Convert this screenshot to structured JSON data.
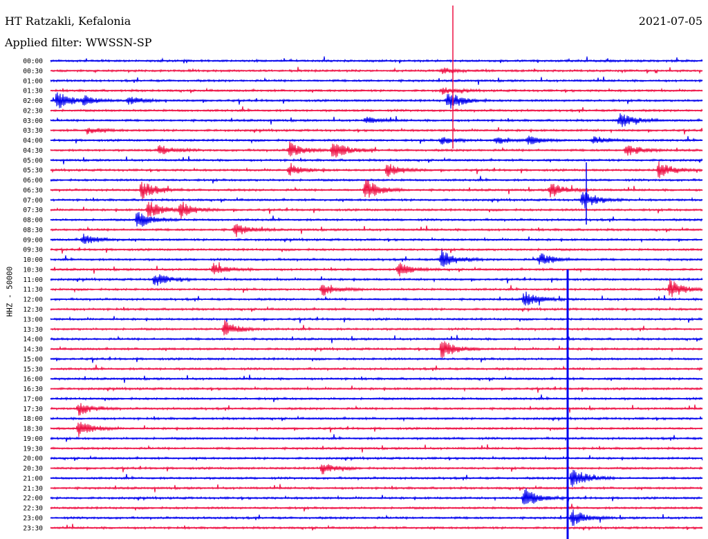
{
  "header": {
    "station": "HT Ratzakli, Kefalonia",
    "date": "2021-07-05",
    "filter_label": "Applied filter:",
    "filter": "WWSSN-SP",
    "channel": "HHZ - 50000"
  },
  "colors": {
    "trace_a": "#0000ee",
    "trace_b": "#ee1144",
    "background": "#ffffff",
    "text": "#000000"
  },
  "chart_data": {
    "type": "line",
    "title": "HT Ratzakli, Kefalonia",
    "subtitle": "Applied filter: WWSSN-SP",
    "ylabel": "HHZ - 50000",
    "rows": [
      "00:00",
      "00:30",
      "01:00",
      "01:30",
      "02:00",
      "02:30",
      "03:00",
      "03:30",
      "04:00",
      "04:30",
      "05:00",
      "05:30",
      "06:00",
      "06:30",
      "07:00",
      "07:30",
      "08:00",
      "08:30",
      "09:00",
      "09:30",
      "10:00",
      "10:30",
      "11:00",
      "11:30",
      "12:00",
      "12:30",
      "13:00",
      "13:30",
      "14:00",
      "14:30",
      "15:00",
      "15:30",
      "16:00",
      "16:30",
      "17:00",
      "17:30",
      "18:00",
      "18:30",
      "19:00",
      "19:30",
      "20:00",
      "20:30",
      "21:00",
      "21:30",
      "22:00",
      "22:30",
      "23:00",
      "23:30"
    ],
    "row_colors": [
      "trace_a",
      "trace_b"
    ],
    "events": [
      {
        "row": "00:30",
        "minute": 18.0,
        "amp": 4
      },
      {
        "row": "01:30",
        "minute": 18.0,
        "amp": 5
      },
      {
        "row": "02:00",
        "minute": 0.3,
        "amp": 14
      },
      {
        "row": "02:00",
        "minute": 1.5,
        "amp": 6
      },
      {
        "row": "02:00",
        "minute": 3.6,
        "amp": 6
      },
      {
        "row": "02:00",
        "minute": 18.3,
        "amp": 14
      },
      {
        "row": "03:00",
        "minute": 14.5,
        "amp": 5
      },
      {
        "row": "03:00",
        "minute": 26.2,
        "amp": 12
      },
      {
        "row": "03:30",
        "minute": 1.7,
        "amp": 5
      },
      {
        "row": "04:00",
        "minute": 18.0,
        "amp": 6
      },
      {
        "row": "04:00",
        "minute": 20.5,
        "amp": 6
      },
      {
        "row": "04:00",
        "minute": 22.0,
        "amp": 6
      },
      {
        "row": "04:00",
        "minute": 25.0,
        "amp": 6
      },
      {
        "row": "04:30",
        "minute": 5.0,
        "amp": 8
      },
      {
        "row": "04:30",
        "minute": 11.0,
        "amp": 12
      },
      {
        "row": "04:30",
        "minute": 13.0,
        "amp": 14
      },
      {
        "row": "04:30",
        "minute": 26.5,
        "amp": 10
      },
      {
        "row": "05:30",
        "minute": 11.0,
        "amp": 8
      },
      {
        "row": "05:30",
        "minute": 15.5,
        "amp": 10
      },
      {
        "row": "05:30",
        "minute": 28.0,
        "amp": 12
      },
      {
        "row": "06:30",
        "minute": 4.2,
        "amp": 14
      },
      {
        "row": "06:30",
        "minute": 14.5,
        "amp": 16
      },
      {
        "row": "06:30",
        "minute": 23.0,
        "amp": 12
      },
      {
        "row": "07:00",
        "minute": 24.5,
        "amp": 14
      },
      {
        "row": "07:30",
        "minute": 4.5,
        "amp": 14
      },
      {
        "row": "07:30",
        "minute": 6.0,
        "amp": 12
      },
      {
        "row": "08:00",
        "minute": 4.0,
        "amp": 14
      },
      {
        "row": "08:30",
        "minute": 8.5,
        "amp": 10
      },
      {
        "row": "09:00",
        "minute": 1.5,
        "amp": 8
      },
      {
        "row": "10:00",
        "minute": 18.0,
        "amp": 14
      },
      {
        "row": "10:00",
        "minute": 22.5,
        "amp": 10
      },
      {
        "row": "10:30",
        "minute": 7.5,
        "amp": 8
      },
      {
        "row": "10:30",
        "minute": 16.0,
        "amp": 10
      },
      {
        "row": "11:00",
        "minute": 4.8,
        "amp": 10
      },
      {
        "row": "11:30",
        "minute": 12.5,
        "amp": 10
      },
      {
        "row": "11:30",
        "minute": 28.5,
        "amp": 14
      },
      {
        "row": "12:00",
        "minute": 21.8,
        "amp": 12
      },
      {
        "row": "13:30",
        "minute": 8.0,
        "amp": 12
      },
      {
        "row": "14:30",
        "minute": 18.0,
        "amp": 14
      },
      {
        "row": "17:30",
        "minute": 1.3,
        "amp": 10
      },
      {
        "row": "18:30",
        "minute": 1.3,
        "amp": 12
      },
      {
        "row": "20:30",
        "minute": 12.5,
        "amp": 8
      },
      {
        "row": "21:00",
        "minute": 24.0,
        "amp": 18
      },
      {
        "row": "22:00",
        "minute": 21.8,
        "amp": 16
      },
      {
        "row": "23:00",
        "minute": 24.0,
        "amp": 12
      }
    ],
    "xlim_minutes": [
      0,
      30
    ],
    "grid": false,
    "legend": "none"
  }
}
